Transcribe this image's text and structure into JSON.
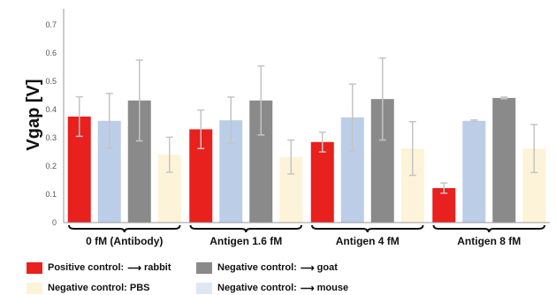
{
  "chart_data": {
    "type": "bar",
    "ylabel": "Vgap [V]",
    "xlabel": "",
    "ylim": [
      0,
      0.75
    ],
    "yticks": [
      "0",
      "0.1",
      "0.2",
      "0.3",
      "0.4",
      "0.5",
      "0.6",
      "0.7"
    ],
    "grid": false,
    "legend_position": "bottom",
    "categories": [
      "0 fM (Antibody)",
      "Antigen 1.6 fM",
      "Antigen 4 fM",
      "Antigen 8 fM"
    ],
    "series": [
      {
        "name": "Positive control: rabbit",
        "color": "#e8201e",
        "values": [
          0.375,
          0.33,
          0.285,
          0.122
        ],
        "errors": [
          0.07,
          0.068,
          0.035,
          0.018
        ]
      },
      {
        "name": "Negative control: mouse",
        "color": "#bccde8",
        "values": [
          0.36,
          0.362,
          0.372,
          0.36
        ],
        "errors": [
          0.097,
          0.082,
          0.118,
          0.003
        ]
      },
      {
        "name": "Negative control: goat",
        "color": "#8a8a8a",
        "values": [
          0.432,
          0.432,
          0.437,
          0.441
        ],
        "errors": [
          0.143,
          0.122,
          0.145,
          0.003
        ]
      },
      {
        "name": "Negative control: PBS",
        "color": "#fdf3d8",
        "values": [
          0.24,
          0.232,
          0.262,
          0.262
        ],
        "errors": [
          0.062,
          0.06,
          0.095,
          0.085
        ]
      }
    ]
  },
  "legend": {
    "positive_rabbit": {
      "text": "Positive control:",
      "target": "rabbit",
      "color": "#e8201e"
    },
    "negative_goat": {
      "text": "Negative control:",
      "target": "goat",
      "color": "#8a8a8a"
    },
    "negative_pbs": {
      "text": "Negative control: PBS",
      "color": "#fdf3d8"
    },
    "negative_mouse": {
      "text": "Negative control:",
      "target": "mouse",
      "color": "#dfe7f5"
    }
  }
}
